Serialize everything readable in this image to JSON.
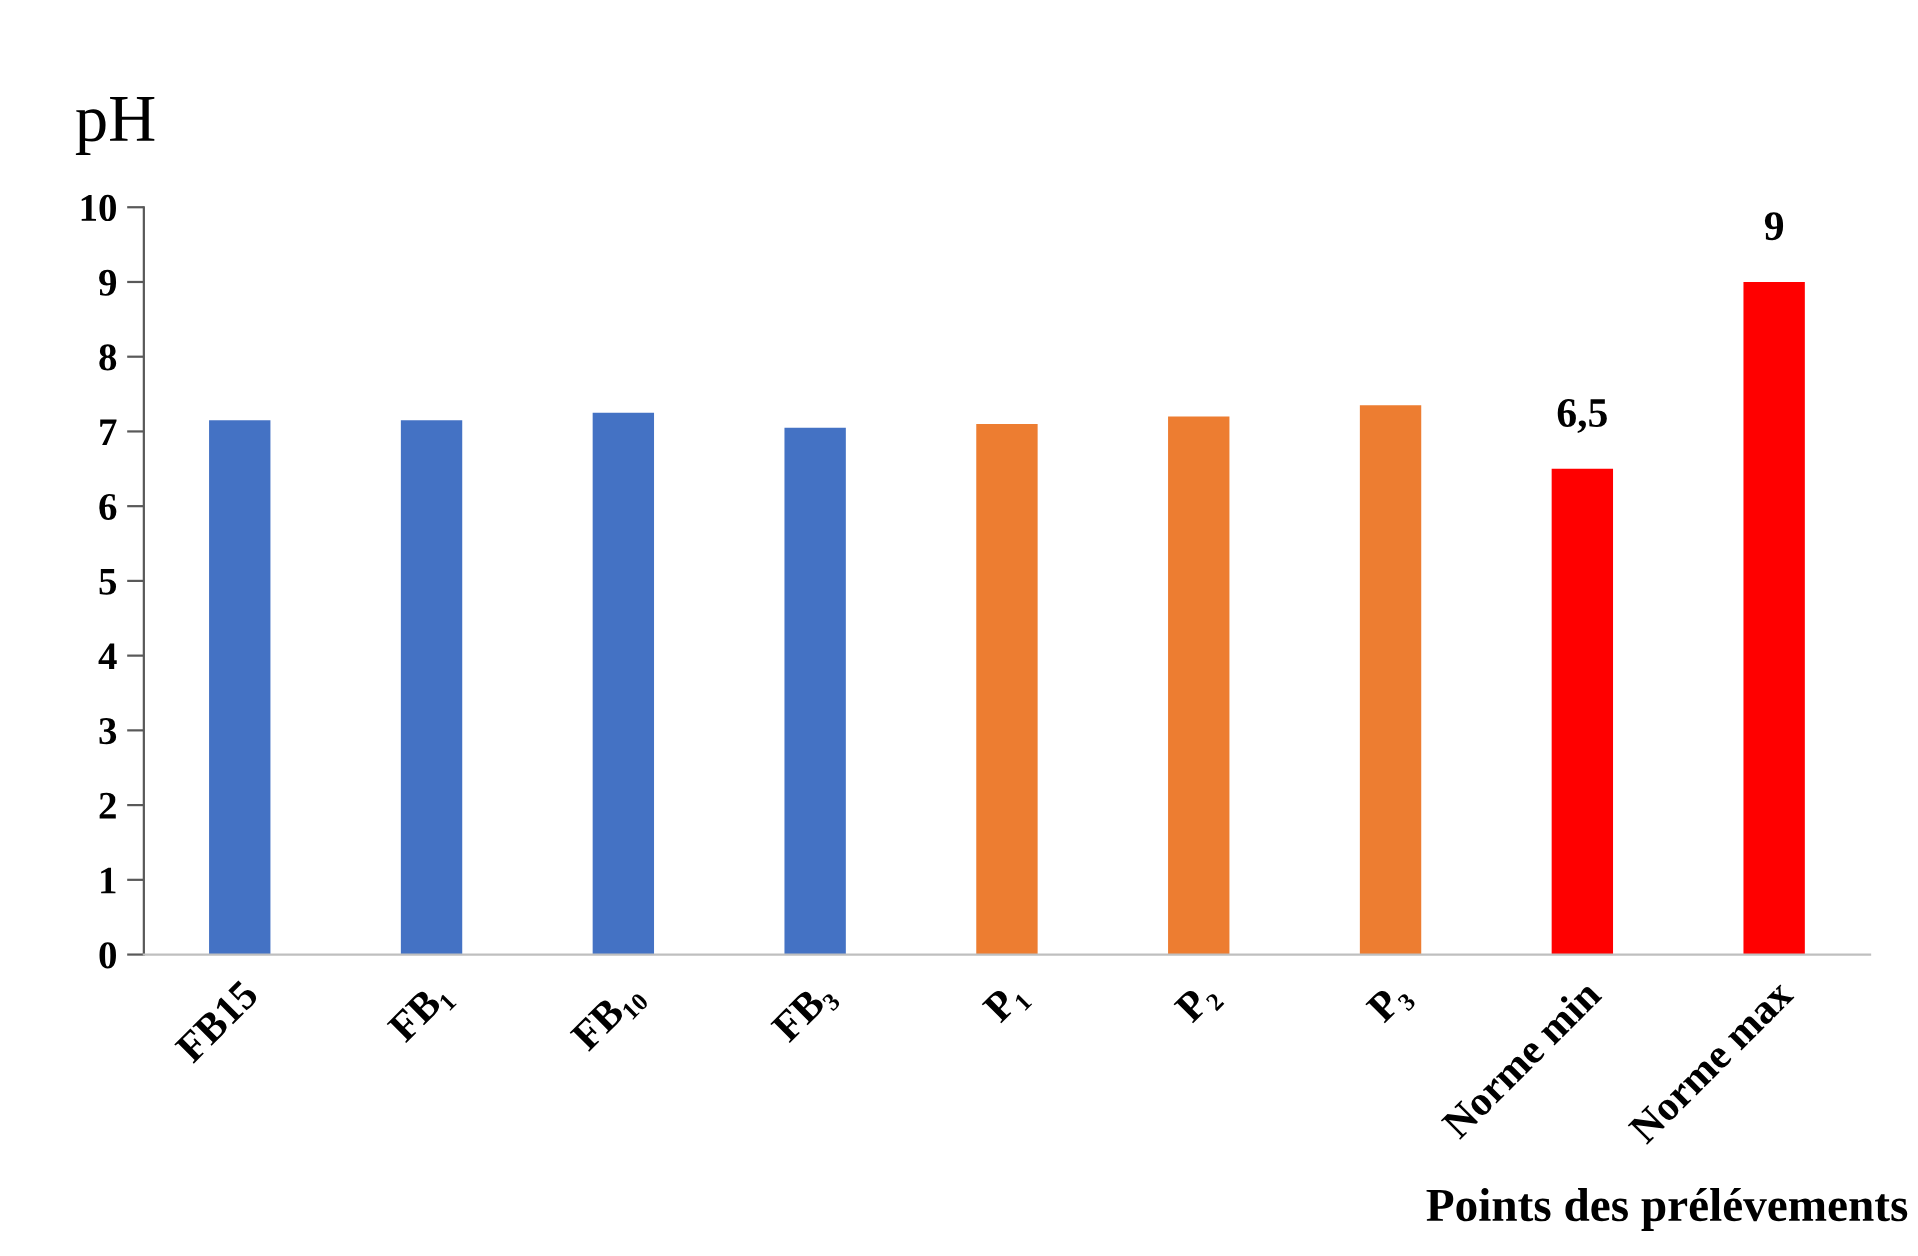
{
  "chart_data": {
    "type": "bar",
    "ylabel": "pH",
    "xlabel": "Points des prélévements",
    "categories": [
      "FB15",
      "FB₁",
      "FB₁₀",
      "FB₃",
      "P₁",
      "P₂",
      "P₃",
      "Norme min",
      "Norme max"
    ],
    "values": [
      7.15,
      7.15,
      7.25,
      7.05,
      7.1,
      7.2,
      7.35,
      6.5,
      9
    ],
    "colors": [
      "#4472c4",
      "#4472c4",
      "#4472c4",
      "#4472c4",
      "#ed7d31",
      "#ed7d31",
      "#ed7d31",
      "#ff0000",
      "#ff0000"
    ],
    "value_labels": [
      null,
      null,
      null,
      null,
      null,
      null,
      null,
      "6,5",
      "9"
    ],
    "ylim": [
      0,
      10
    ],
    "yticks": [
      0,
      1,
      2,
      3,
      4,
      5,
      6,
      7,
      8,
      9,
      10
    ],
    "grid": false,
    "legend": false
  }
}
